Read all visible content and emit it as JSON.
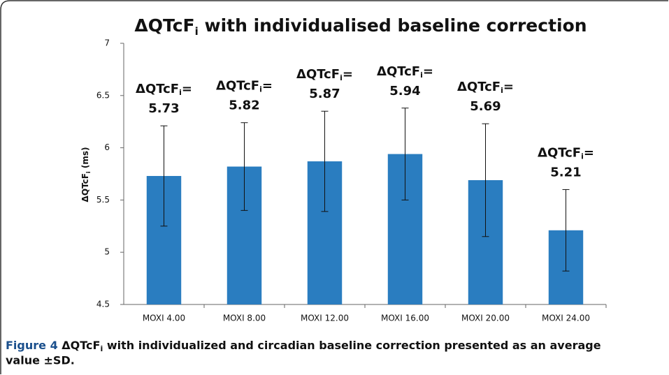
{
  "chart_data": {
    "type": "bar",
    "title": [
      "ΔQTcF",
      "i",
      " with individualised baseline correction"
    ],
    "y_label": [
      "ΔQTcF",
      "i",
      " (ms)"
    ],
    "value_label_prefix": [
      "ΔQTcF",
      "i",
      "="
    ],
    "categories": [
      "MOXI 4.00",
      "MOXI 8.00",
      "MOXI 12.00",
      "MOXI 16.00",
      "MOXI 20.00",
      "MOXI 24.00"
    ],
    "values": [
      5.73,
      5.82,
      5.87,
      5.94,
      5.69,
      5.21
    ],
    "errors": [
      0.48,
      0.42,
      0.48,
      0.44,
      0.54,
      0.39
    ],
    "color": "#2a7dc0",
    "ylim": [
      4.5,
      7
    ],
    "yticks": [
      4.5,
      5,
      5.5,
      6,
      6.5,
      7
    ],
    "grid": false
  },
  "caption": {
    "label": "Figure 4",
    "text": [
      "ΔQTcF",
      "i",
      " with individualized and circadian baseline correction presented as an average value ±SD."
    ]
  }
}
